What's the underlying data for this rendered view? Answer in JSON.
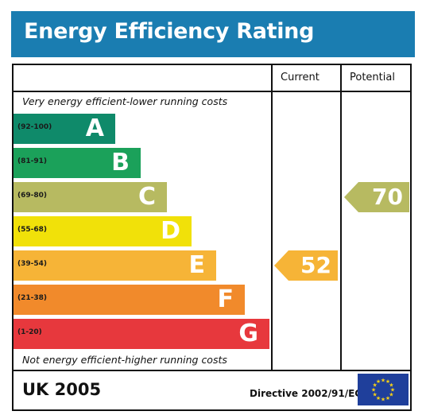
{
  "header": {
    "title": "Energy Efficiency Rating"
  },
  "columns": {
    "current": "Current",
    "potential": "Potential"
  },
  "notes": {
    "top": "Very energy efficient-lower running costs",
    "bottom": "Not energy efficient-higher running costs"
  },
  "bands": [
    {
      "range": "(92-100)",
      "letter": "A",
      "color": "#0f8a6a"
    },
    {
      "range": "(81-91)",
      "letter": "B",
      "color": "#1ba15a"
    },
    {
      "range": "(69-80)",
      "letter": "C",
      "color": "#b7ba61"
    },
    {
      "range": "(55-68)",
      "letter": "D",
      "color": "#f1e109"
    },
    {
      "range": "(39-54)",
      "letter": "E",
      "color": "#f6b437"
    },
    {
      "range": "(21-38)",
      "letter": "F",
      "color": "#f18a2b"
    },
    {
      "range": "(1-20)",
      "letter": "G",
      "color": "#e7383d"
    }
  ],
  "ratings": {
    "current": {
      "value": "52",
      "band": "E",
      "color": "#f6b437"
    },
    "potential": {
      "value": "70",
      "band": "C",
      "color": "#b7ba61"
    }
  },
  "footer": {
    "country": "UK 2005",
    "directive": "Directive 2002/91/EC"
  },
  "flag": {
    "name": "eu-flag",
    "background": "#1f3f9b",
    "stars": "#f7d117"
  }
}
